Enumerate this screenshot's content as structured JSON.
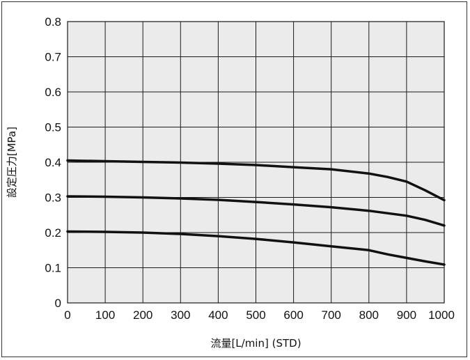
{
  "chart_data": {
    "type": "line",
    "xlabel": "流量[L/min] (STD)",
    "ylabel": "設定圧力[MPa]",
    "xlim": [
      0,
      1000
    ],
    "ylim": [
      0,
      0.8
    ],
    "x_ticks": [
      "0",
      "100",
      "200",
      "300",
      "400",
      "500",
      "600",
      "700",
      "800",
      "900",
      "1000"
    ],
    "y_ticks": [
      "0",
      "0.1",
      "0.2",
      "0.3",
      "0.4",
      "0.5",
      "0.6",
      "0.7",
      "0.8"
    ],
    "grid": true,
    "series": [
      {
        "x": [
          0,
          100,
          200,
          300,
          400,
          500,
          600,
          700,
          800,
          850,
          900,
          950,
          1000
        ],
        "values": [
          0.405,
          0.403,
          0.401,
          0.399,
          0.396,
          0.392,
          0.386,
          0.38,
          0.368,
          0.358,
          0.345,
          0.32,
          0.292
        ]
      },
      {
        "x": [
          0,
          100,
          200,
          300,
          400,
          500,
          600,
          700,
          800,
          900,
          950,
          1000
        ],
        "values": [
          0.303,
          0.302,
          0.3,
          0.297,
          0.293,
          0.287,
          0.28,
          0.272,
          0.262,
          0.248,
          0.236,
          0.22
        ]
      },
      {
        "x": [
          0,
          100,
          200,
          300,
          400,
          500,
          600,
          700,
          800,
          850,
          900,
          950,
          1000
        ],
        "values": [
          0.203,
          0.202,
          0.2,
          0.196,
          0.19,
          0.182,
          0.172,
          0.161,
          0.15,
          0.138,
          0.128,
          0.118,
          0.109
        ]
      }
    ],
    "colors": {
      "plot_bg": "#ebebeb",
      "grid": "#1a1a1a",
      "line": "#111111"
    }
  }
}
